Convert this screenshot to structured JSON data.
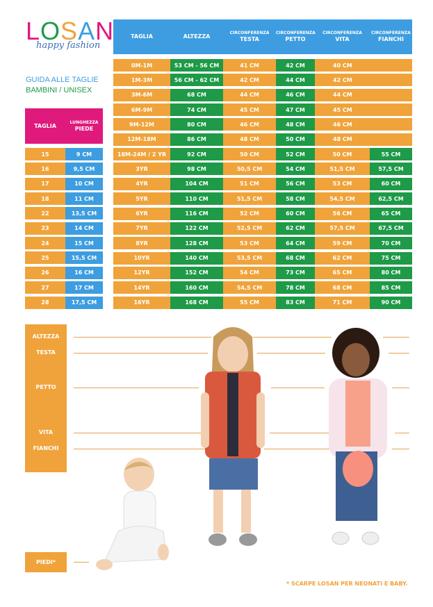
{
  "brand": {
    "logo_letters": [
      "L",
      "O",
      "S",
      "A",
      "N"
    ],
    "logo_colors": [
      "#e0197d",
      "#1e9a48",
      "#f0a33a",
      "#3d9de0",
      "#e0197d"
    ],
    "tagline": "happy fashion"
  },
  "guide": {
    "line1": "GUIDA ALLE TAGLIE",
    "line2": "BAMBINI / UNISEX"
  },
  "colors": {
    "blue": "#3d9de0",
    "green": "#1e9a48",
    "orange": "#f0a33a",
    "pink": "#e0197d"
  },
  "size_table": {
    "headers": [
      {
        "top": "",
        "main": "TAGLIA"
      },
      {
        "top": "",
        "main": "ALTEZZA"
      },
      {
        "top": "CIRCONFERENZA",
        "main": "TESTA"
      },
      {
        "top": "CIRCONFERENZA",
        "main": "PETTO"
      },
      {
        "top": "CIRCONFERENZA",
        "main": "VITA"
      },
      {
        "top": "CIRCONFERENZA",
        "main": "FIANCHI"
      }
    ],
    "rows": [
      [
        "0M-1M",
        "53 CM - 56 CM",
        "41 CM",
        "42 CM",
        "40 CM",
        ""
      ],
      [
        "1M-3M",
        "56 CM - 62 CM",
        "42 CM",
        "44 CM",
        "42 CM",
        ""
      ],
      [
        "3M-6M",
        "68 CM",
        "44 CM",
        "46 CM",
        "44 CM",
        ""
      ],
      [
        "6M-9M",
        "74 CM",
        "45 CM",
        "47 CM",
        "45 CM",
        ""
      ],
      [
        "9M-12M",
        "80 CM",
        "46 CM",
        "48 CM",
        "46 CM",
        ""
      ],
      [
        "12M-18M",
        "86 CM",
        "48 CM",
        "50 CM",
        "48 CM",
        ""
      ],
      [
        "18M-24M / 2 YR",
        "92 CM",
        "50 CM",
        "52 CM",
        "50 CM",
        "55 CM"
      ],
      [
        "3YR",
        "98 CM",
        "50,5 CM",
        "54 CM",
        "51,5 CM",
        "57,5 CM"
      ],
      [
        "4YR",
        "104 CM",
        "51 CM",
        "56 CM",
        "53 CM",
        "60 CM"
      ],
      [
        "5YR",
        "110 CM",
        "51,5 CM",
        "58 CM",
        "54,5 CM",
        "62,5 CM"
      ],
      [
        "6YR",
        "116 CM",
        "52 CM",
        "60 CM",
        "56 CM",
        "65 CM"
      ],
      [
        "7YR",
        "122 CM",
        "52,5 CM",
        "62 CM",
        "57,5 CM",
        "67,5 CM"
      ],
      [
        "8YR",
        "128 CM",
        "53 CM",
        "64 CM",
        "59 CM",
        "70 CM"
      ],
      [
        "10YR",
        "140 CM",
        "53,5 CM",
        "68 CM",
        "62 CM",
        "75 CM"
      ],
      [
        "12YR",
        "152 CM",
        "54 CM",
        "73 CM",
        "65 CM",
        "80 CM"
      ],
      [
        "14YR",
        "160 CM",
        "54,5 CM",
        "78 CM",
        "68 CM",
        "85 CM"
      ],
      [
        "16YR",
        "168 CM",
        "55 CM",
        "83 CM",
        "71 CM",
        "90 CM"
      ]
    ]
  },
  "shoe_table": {
    "headers": [
      {
        "top": "",
        "main": "TAGLIA"
      },
      {
        "top": "LUNGHEZZA",
        "main": "PIEDE"
      }
    ],
    "rows": [
      [
        "15",
        "9 CM"
      ],
      [
        "16",
        "9,5 CM"
      ],
      [
        "17",
        "10 CM"
      ],
      [
        "18",
        "11 CM"
      ],
      [
        "22",
        "13,5 CM"
      ],
      [
        "23",
        "14 CM"
      ],
      [
        "24",
        "15 CM"
      ],
      [
        "25",
        "15,5 CM"
      ],
      [
        "26",
        "16 CM"
      ],
      [
        "27",
        "17 CM"
      ],
      [
        "28",
        "17,5 CM"
      ]
    ]
  },
  "measures": {
    "labels": [
      "ALTEZZA",
      "TESTA",
      "PETTO",
      "VITA",
      "FIANCHI"
    ],
    "piedi": "PIEDI*"
  },
  "footnote": "* SCARPE LOSAN PER NEONATI E BABY."
}
